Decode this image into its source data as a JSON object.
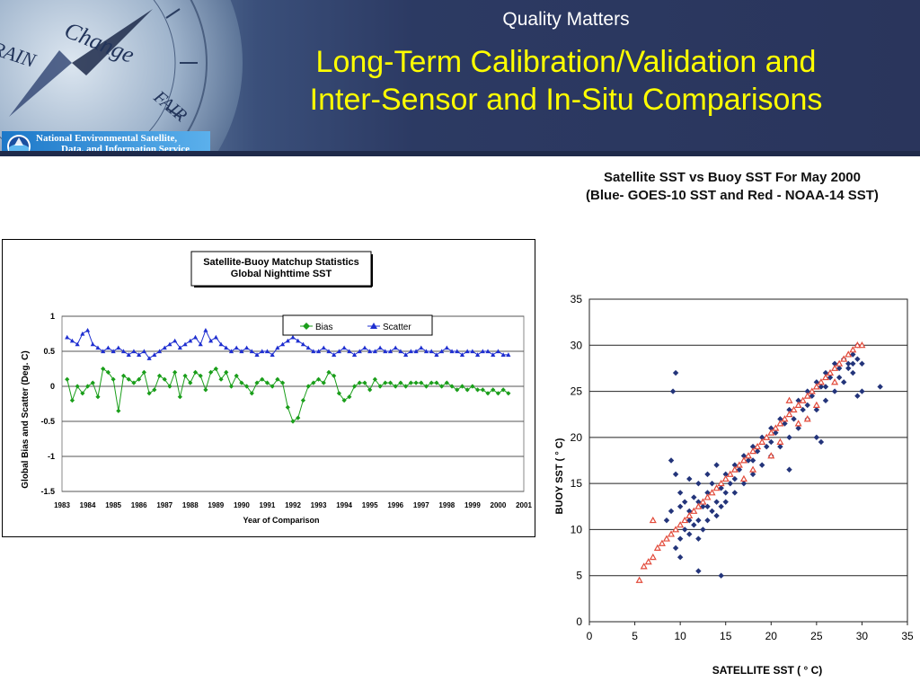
{
  "banner": {
    "subtitle": "Quality Matters",
    "title_line1": "Long-Term Calibration/Validation and",
    "title_line2": "Inter-Sensor and In-Situ Comparisons",
    "org_line1": "National Environmental Satellite,",
    "org_line2": "Data, and Information Service",
    "compass_words": [
      "RAIN",
      "Change",
      "FAIR"
    ]
  },
  "right_panel_title": {
    "line1": "Satellite SST vs Buoy SST For May 2000",
    "line2": "(Blue- GOES-10 SST and Red - NOAA-14 SST)"
  },
  "chart_data": [
    {
      "type": "line",
      "title": "Satellite-Buoy Matchup Statistics",
      "subtitle": "Global Nighttime SST",
      "xlabel": "Year of Comparison",
      "ylabel": "Global Bias and Scatter (Deg. C)",
      "ylim": [
        -1.5,
        1
      ],
      "xlim": [
        1983,
        2001
      ],
      "yticks": [
        "1",
        "0.5",
        "0",
        "-0.5",
        "-1",
        "-1.5"
      ],
      "xticks": [
        "1983",
        "1984",
        "1985",
        "1986",
        "1987",
        "1988",
        "1989",
        "1990",
        "1991",
        "1992",
        "1993",
        "1994",
        "1995",
        "1996",
        "1997",
        "1998",
        "1999",
        "2000",
        "2001"
      ],
      "legend_position": "top-right",
      "grid": "horizontal",
      "series": [
        {
          "name": "Bias",
          "color": "#1a9e1a",
          "marker": "diamond",
          "x": [
            1983.2,
            1983.4,
            1983.6,
            1983.8,
            1984.0,
            1984.2,
            1984.4,
            1984.6,
            1984.8,
            1985.0,
            1985.2,
            1985.4,
            1985.6,
            1985.8,
            1986.0,
            1986.2,
            1986.4,
            1986.6,
            1986.8,
            1987.0,
            1987.2,
            1987.4,
            1987.6,
            1987.8,
            1988.0,
            1988.2,
            1988.4,
            1988.6,
            1988.8,
            1989.0,
            1989.2,
            1989.4,
            1989.6,
            1989.8,
            1990.0,
            1990.2,
            1990.4,
            1990.6,
            1990.8,
            1991.0,
            1991.2,
            1991.4,
            1991.6,
            1991.8,
            1992.0,
            1992.2,
            1992.4,
            1992.6,
            1992.8,
            1993.0,
            1993.2,
            1993.4,
            1993.6,
            1993.8,
            1994.0,
            1994.2,
            1994.4,
            1994.6,
            1994.8,
            1995.0,
            1995.2,
            1995.4,
            1995.6,
            1995.8,
            1996.0,
            1996.2,
            1996.4,
            1996.6,
            1996.8,
            1997.0,
            1997.2,
            1997.4,
            1997.6,
            1997.8,
            1998.0,
            1998.2,
            1998.4,
            1998.6,
            1998.8,
            1999.0,
            1999.2,
            1999.4,
            1999.6,
            1999.8,
            2000.0,
            2000.2,
            2000.4
          ],
          "values": [
            0.1,
            -0.2,
            0.0,
            -0.1,
            0.0,
            0.05,
            -0.15,
            0.25,
            0.2,
            0.1,
            -0.35,
            0.15,
            0.1,
            0.05,
            0.1,
            0.2,
            -0.1,
            -0.05,
            0.15,
            0.1,
            0.0,
            0.2,
            -0.15,
            0.15,
            0.05,
            0.2,
            0.15,
            -0.05,
            0.2,
            0.25,
            0.1,
            0.2,
            0.0,
            0.15,
            0.05,
            0.0,
            -0.1,
            0.05,
            0.1,
            0.05,
            0.0,
            0.1,
            0.05,
            -0.3,
            -0.5,
            -0.45,
            -0.2,
            0.0,
            0.05,
            0.1,
            0.05,
            0.2,
            0.15,
            -0.1,
            -0.2,
            -0.15,
            0.0,
            0.05,
            0.05,
            -0.05,
            0.1,
            0.0,
            0.05,
            0.05,
            0.0,
            0.05,
            0.0,
            0.05,
            0.05,
            0.05,
            0.0,
            0.05,
            0.05,
            0.0,
            0.05,
            0.0,
            -0.05,
            0.0,
            -0.05,
            0.0,
            -0.05,
            -0.05,
            -0.1,
            -0.05,
            -0.1,
            -0.05,
            -0.1
          ]
        },
        {
          "name": "Scatter",
          "color": "#1f2fd0",
          "marker": "triangle",
          "x": [
            1983.2,
            1983.4,
            1983.6,
            1983.8,
            1984.0,
            1984.2,
            1984.4,
            1984.6,
            1984.8,
            1985.0,
            1985.2,
            1985.4,
            1985.6,
            1985.8,
            1986.0,
            1986.2,
            1986.4,
            1986.6,
            1986.8,
            1987.0,
            1987.2,
            1987.4,
            1987.6,
            1987.8,
            1988.0,
            1988.2,
            1988.4,
            1988.6,
            1988.8,
            1989.0,
            1989.2,
            1989.4,
            1989.6,
            1989.8,
            1990.0,
            1990.2,
            1990.4,
            1990.6,
            1990.8,
            1991.0,
            1991.2,
            1991.4,
            1991.6,
            1991.8,
            1992.0,
            1992.2,
            1992.4,
            1992.6,
            1992.8,
            1993.0,
            1993.2,
            1993.4,
            1993.6,
            1993.8,
            1994.0,
            1994.2,
            1994.4,
            1994.6,
            1994.8,
            1995.0,
            1995.2,
            1995.4,
            1995.6,
            1995.8,
            1996.0,
            1996.2,
            1996.4,
            1996.6,
            1996.8,
            1997.0,
            1997.2,
            1997.4,
            1997.6,
            1997.8,
            1998.0,
            1998.2,
            1998.4,
            1998.6,
            1998.8,
            1999.0,
            1999.2,
            1999.4,
            1999.6,
            1999.8,
            2000.0,
            2000.2,
            2000.4
          ],
          "values": [
            0.7,
            0.65,
            0.6,
            0.75,
            0.8,
            0.6,
            0.55,
            0.5,
            0.55,
            0.5,
            0.55,
            0.5,
            0.45,
            0.5,
            0.45,
            0.5,
            0.4,
            0.45,
            0.5,
            0.55,
            0.6,
            0.65,
            0.55,
            0.6,
            0.65,
            0.7,
            0.6,
            0.8,
            0.65,
            0.7,
            0.6,
            0.55,
            0.5,
            0.55,
            0.5,
            0.55,
            0.5,
            0.45,
            0.5,
            0.5,
            0.45,
            0.55,
            0.6,
            0.65,
            0.7,
            0.65,
            0.6,
            0.55,
            0.5,
            0.5,
            0.55,
            0.5,
            0.45,
            0.5,
            0.55,
            0.5,
            0.45,
            0.5,
            0.55,
            0.5,
            0.5,
            0.55,
            0.5,
            0.5,
            0.55,
            0.5,
            0.45,
            0.5,
            0.5,
            0.55,
            0.5,
            0.5,
            0.45,
            0.5,
            0.55,
            0.5,
            0.5,
            0.45,
            0.5,
            0.5,
            0.45,
            0.5,
            0.5,
            0.45,
            0.5,
            0.45,
            0.45
          ]
        }
      ]
    },
    {
      "type": "scatter",
      "title": "Satellite SST vs Buoy SST For May 2000",
      "subtitle": "(Blue- GOES-10 SST and Red - NOAA-14 SST)",
      "xlabel": "SATELLITE SST ( ° C)",
      "ylabel": "BUOY SST ( ° C)",
      "xlim": [
        0,
        35
      ],
      "ylim": [
        0,
        35
      ],
      "xticks": [
        "0",
        "5",
        "10",
        "15",
        "20",
        "25",
        "30",
        "35"
      ],
      "yticks": [
        "0",
        "5",
        "10",
        "15",
        "20",
        "25",
        "30",
        "35"
      ],
      "grid": "horizontal",
      "series": [
        {
          "name": "GOES-10 SST",
          "color": "#23347a",
          "marker": "diamond",
          "points": [
            [
              9,
              17.5
            ],
            [
              9.5,
              16
            ],
            [
              10,
              14
            ],
            [
              10.5,
              13
            ],
            [
              11,
              12
            ],
            [
              11.5,
              13.5
            ],
            [
              12,
              11
            ],
            [
              12.5,
              12.5
            ],
            [
              13,
              14
            ],
            [
              13.5,
              15
            ],
            [
              14,
              13
            ],
            [
              14.5,
              14.5
            ],
            [
              15,
              16
            ],
            [
              15.5,
              15
            ],
            [
              16,
              17
            ],
            [
              16.5,
              16.5
            ],
            [
              17,
              18
            ],
            [
              17.5,
              17.5
            ],
            [
              18,
              19
            ],
            [
              18.5,
              18.5
            ],
            [
              19,
              20
            ],
            [
              19.5,
              19
            ],
            [
              20,
              21
            ],
            [
              20.5,
              20.5
            ],
            [
              21,
              22
            ],
            [
              21.5,
              21.5
            ],
            [
              22,
              23
            ],
            [
              22.5,
              22
            ],
            [
              23,
              24
            ],
            [
              23.5,
              23
            ],
            [
              24,
              25
            ],
            [
              24.5,
              24.5
            ],
            [
              25,
              26
            ],
            [
              25.5,
              25.5
            ],
            [
              26,
              27
            ],
            [
              26.5,
              26.5
            ],
            [
              27,
              28
            ],
            [
              27.5,
              27.5
            ],
            [
              28,
              28.5
            ],
            [
              28.5,
              28
            ],
            [
              29,
              29
            ],
            [
              29.5,
              28.5
            ],
            [
              9.5,
              8
            ],
            [
              10,
              9
            ],
            [
              10.5,
              10
            ],
            [
              11,
              9.5
            ],
            [
              11.5,
              10.5
            ],
            [
              12,
              9
            ],
            [
              12.5,
              10
            ],
            [
              13,
              11
            ],
            [
              13.5,
              12
            ],
            [
              14,
              11.5
            ],
            [
              14.5,
              12.5
            ],
            [
              15,
              13
            ],
            [
              16,
              14
            ],
            [
              17,
              15
            ],
            [
              18,
              16
            ],
            [
              19,
              17
            ],
            [
              20,
              18
            ],
            [
              21,
              19
            ],
            [
              22,
              20
            ],
            [
              23,
              21
            ],
            [
              24,
              22
            ],
            [
              25,
              23
            ],
            [
              26,
              24
            ],
            [
              27,
              25
            ],
            [
              28,
              26
            ],
            [
              29,
              27
            ],
            [
              30,
              28
            ],
            [
              11,
              15.5
            ],
            [
              12,
              15
            ],
            [
              13,
              16
            ],
            [
              14,
              17
            ],
            [
              22,
              16.5
            ],
            [
              25,
              20
            ],
            [
              25.5,
              19.5
            ],
            [
              30,
              25
            ],
            [
              32,
              25.5
            ],
            [
              29.5,
              24.5
            ],
            [
              9.2,
              25
            ],
            [
              9.5,
              27
            ],
            [
              10,
              7
            ],
            [
              12,
              5.5
            ],
            [
              14.5,
              5
            ],
            [
              8.5,
              11
            ],
            [
              9,
              12
            ],
            [
              10,
              12.5
            ],
            [
              11,
              11
            ],
            [
              12,
              13
            ],
            [
              13,
              12.5
            ],
            [
              15,
              14
            ],
            [
              16,
              15.5
            ],
            [
              18,
              17.5
            ],
            [
              20,
              19.5
            ],
            [
              24,
              23.5
            ],
            [
              26,
              25.5
            ],
            [
              27.5,
              26.5
            ],
            [
              28.5,
              27.5
            ],
            [
              29,
              28
            ],
            [
              29.5,
              30
            ]
          ]
        },
        {
          "name": "NOAA-14 SST",
          "color": "#e24a3a",
          "marker": "triangle",
          "points": [
            [
              5.5,
              4.5
            ],
            [
              6,
              6
            ],
            [
              6.5,
              6.5
            ],
            [
              7,
              7
            ],
            [
              7.5,
              8
            ],
            [
              8,
              8.5
            ],
            [
              8.5,
              9
            ],
            [
              7,
              11
            ],
            [
              9,
              9.5
            ],
            [
              9.5,
              10
            ],
            [
              10,
              10.5
            ],
            [
              10.5,
              11
            ],
            [
              11,
              11.5
            ],
            [
              11.5,
              12
            ],
            [
              12,
              12.5
            ],
            [
              12.5,
              13
            ],
            [
              13,
              13.5
            ],
            [
              13.5,
              14
            ],
            [
              14,
              14.5
            ],
            [
              14.5,
              15
            ],
            [
              15,
              15.5
            ],
            [
              15.5,
              16
            ],
            [
              16,
              16.5
            ],
            [
              16.5,
              17
            ],
            [
              17,
              17.5
            ],
            [
              17.5,
              18
            ],
            [
              18,
              18.5
            ],
            [
              18.5,
              19
            ],
            [
              19,
              19.5
            ],
            [
              19.5,
              20
            ],
            [
              20,
              20.5
            ],
            [
              20.5,
              21
            ],
            [
              21,
              21.5
            ],
            [
              21.5,
              22
            ],
            [
              22,
              22.5
            ],
            [
              22.5,
              23
            ],
            [
              23,
              23.5
            ],
            [
              23.5,
              24
            ],
            [
              24,
              24.5
            ],
            [
              24.5,
              25
            ],
            [
              25,
              25.5
            ],
            [
              25.5,
              26
            ],
            [
              26,
              26.5
            ],
            [
              26.5,
              27
            ],
            [
              27,
              27.5
            ],
            [
              27.5,
              28
            ],
            [
              28,
              28.5
            ],
            [
              28.5,
              29
            ],
            [
              29,
              29.5
            ],
            [
              29.5,
              30
            ],
            [
              30,
              30
            ],
            [
              18,
              16.5
            ],
            [
              21,
              19.5
            ],
            [
              22,
              24
            ],
            [
              24,
              22
            ],
            [
              27,
              26
            ],
            [
              20,
              18
            ],
            [
              17,
              15.5
            ],
            [
              23,
              21.5
            ],
            [
              25,
              23.5
            ]
          ]
        }
      ]
    }
  ]
}
